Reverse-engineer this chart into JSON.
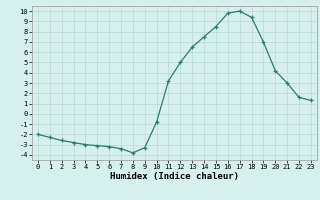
{
  "xlabel": "Humidex (Indice chaleur)",
  "ylabel": "",
  "x_values": [
    0,
    1,
    2,
    3,
    4,
    5,
    6,
    7,
    8,
    9,
    10,
    11,
    12,
    13,
    14,
    15,
    16,
    17,
    18,
    19,
    20,
    21,
    22,
    23
  ],
  "y_values": [
    -2.0,
    -2.3,
    -2.6,
    -2.8,
    -3.0,
    -3.1,
    -3.2,
    -3.4,
    -3.8,
    -3.3,
    -0.8,
    3.2,
    5.0,
    6.5,
    7.5,
    8.5,
    9.8,
    10.0,
    9.4,
    7.0,
    4.2,
    3.0,
    1.6,
    1.3
  ],
  "line_color": "#2e7d6e",
  "marker": "+",
  "marker_size": 3,
  "background_color": "#d6f0ee",
  "grid_color": "#b8d8d4",
  "ylim": [
    -4.5,
    10.5
  ],
  "xlim": [
    -0.5,
    23.5
  ],
  "yticks": [
    -4,
    -3,
    -2,
    -1,
    0,
    1,
    2,
    3,
    4,
    5,
    6,
    7,
    8,
    9,
    10
  ],
  "xticks": [
    0,
    1,
    2,
    3,
    4,
    5,
    6,
    7,
    8,
    9,
    10,
    11,
    12,
    13,
    14,
    15,
    16,
    17,
    18,
    19,
    20,
    21,
    22,
    23
  ],
  "tick_fontsize": 5,
  "label_fontsize": 6.5,
  "fig_width": 3.2,
  "fig_height": 2.0,
  "dpi": 100
}
